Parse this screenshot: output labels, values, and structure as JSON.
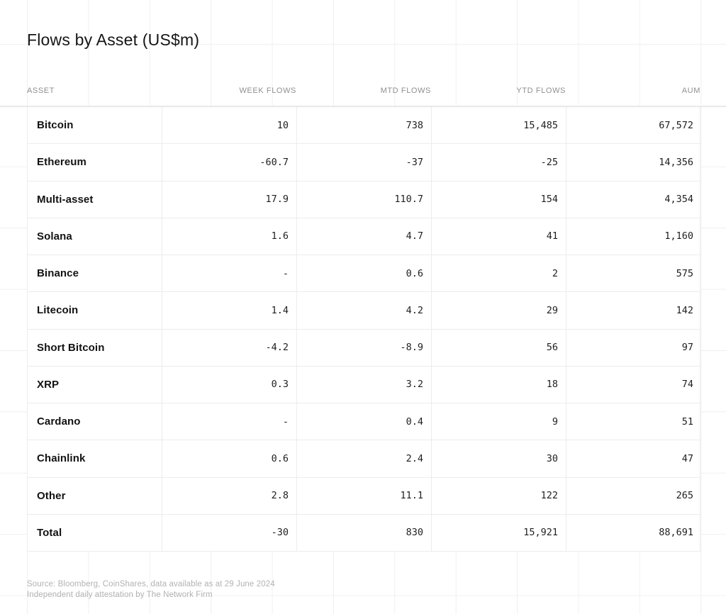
{
  "title": "Flows by Asset (US$m)",
  "table": {
    "columns": [
      "ASSET",
      "WEEK FLOWS",
      "MTD FLOWS",
      "YTD FLOWS",
      "AUM"
    ],
    "rows": [
      {
        "asset": "Bitcoin",
        "week": "10",
        "mtd": "738",
        "ytd": "15,485",
        "aum": "67,572"
      },
      {
        "asset": "Ethereum",
        "week": "-60.7",
        "mtd": "-37",
        "ytd": "-25",
        "aum": "14,356"
      },
      {
        "asset": "Multi-asset",
        "week": "17.9",
        "mtd": "110.7",
        "ytd": "154",
        "aum": "4,354"
      },
      {
        "asset": "Solana",
        "week": "1.6",
        "mtd": "4.7",
        "ytd": "41",
        "aum": "1,160"
      },
      {
        "asset": "Binance",
        "week": "-",
        "mtd": "0.6",
        "ytd": "2",
        "aum": "575"
      },
      {
        "asset": "Litecoin",
        "week": "1.4",
        "mtd": "4.2",
        "ytd": "29",
        "aum": "142"
      },
      {
        "asset": "Short Bitcoin",
        "week": "-4.2",
        "mtd": "-8.9",
        "ytd": "56",
        "aum": "97"
      },
      {
        "asset": "XRP",
        "week": "0.3",
        "mtd": "3.2",
        "ytd": "18",
        "aum": "74"
      },
      {
        "asset": "Cardano",
        "week": "-",
        "mtd": "0.4",
        "ytd": "9",
        "aum": "51"
      },
      {
        "asset": "Chainlink",
        "week": "0.6",
        "mtd": "2.4",
        "ytd": "30",
        "aum": "47"
      },
      {
        "asset": "Other",
        "week": "2.8",
        "mtd": "11.1",
        "ytd": "122",
        "aum": "265"
      },
      {
        "asset": "Total",
        "week": "-30",
        "mtd": "830",
        "ytd": "15,921",
        "aum": "88,691"
      }
    ]
  },
  "footer": {
    "line1": "Source: Bloomberg, CoinShares, data available as at 29 June 2024",
    "line2": "Independent daily attestation by The Network Firm"
  },
  "colors": {
    "background": "#ffffff",
    "text_primary": "#161616",
    "asset_text": "#121212",
    "number_text": "#1f1f1f",
    "header_label": "#8f8f8f",
    "footer_text": "#b3b3b3",
    "table_border": "#ececec",
    "header_rule": "#dfdfdf",
    "grid_line": "#f0f0f0"
  },
  "chart_data": {
    "type": "table",
    "title": "Flows by Asset (US$m)",
    "units": "US$m",
    "columns": [
      "ASSET",
      "WEEK FLOWS",
      "MTD FLOWS",
      "YTD FLOWS",
      "AUM"
    ],
    "rows": [
      [
        "Bitcoin",
        10,
        738,
        15485,
        67572
      ],
      [
        "Ethereum",
        -60.7,
        -37,
        -25,
        14356
      ],
      [
        "Multi-asset",
        17.9,
        110.7,
        154,
        4354
      ],
      [
        "Solana",
        1.6,
        4.7,
        41,
        1160
      ],
      [
        "Binance",
        null,
        0.6,
        2,
        575
      ],
      [
        "Litecoin",
        1.4,
        4.2,
        29,
        142
      ],
      [
        "Short Bitcoin",
        -4.2,
        -8.9,
        56,
        97
      ],
      [
        "XRP",
        0.3,
        3.2,
        18,
        74
      ],
      [
        "Cardano",
        null,
        0.4,
        9,
        51
      ],
      [
        "Chainlink",
        0.6,
        2.4,
        30,
        47
      ],
      [
        "Other",
        2.8,
        11.1,
        122,
        265
      ],
      [
        "Total",
        -30,
        830,
        15921,
        88691
      ]
    ],
    "notes": [
      "null means value shown as \"-\" in the table"
    ]
  }
}
